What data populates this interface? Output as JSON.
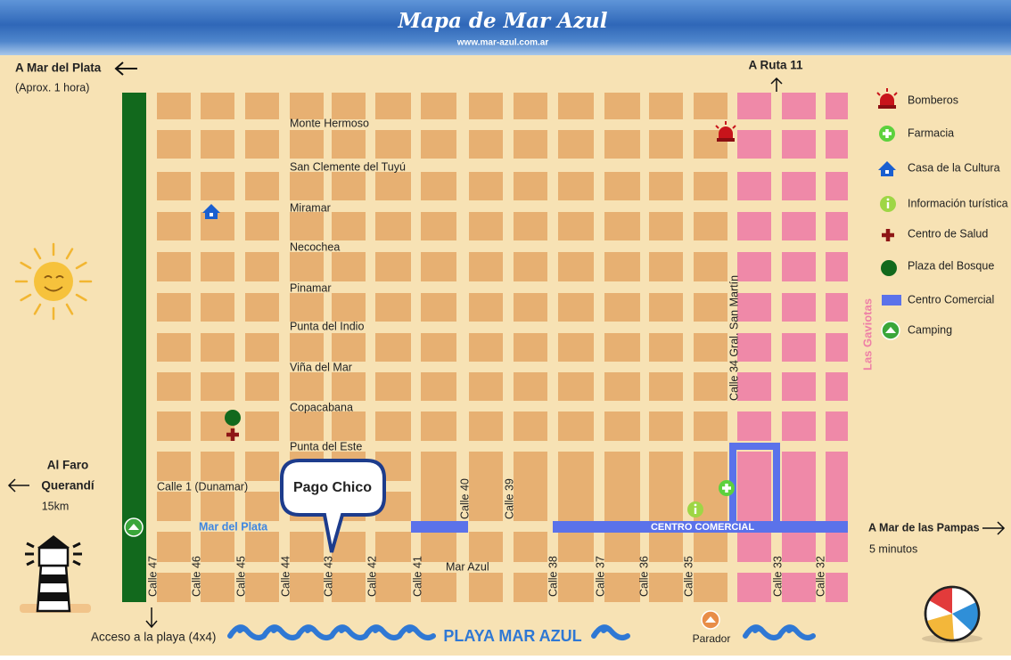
{
  "header": {
    "title": "Mapa de Mar Azul",
    "subtitle": "www.mar-azul.com.ar"
  },
  "directions": {
    "mar_del_plata": {
      "label": "A Mar del Plata",
      "note": "(Aprox. 1 hora)"
    },
    "ruta_11": {
      "label": "A Ruta 11"
    },
    "faro": {
      "label_lines": [
        "Al Faro",
        "Querandí"
      ],
      "note": "15km"
    },
    "mar_de_las_pampas": {
      "label": "A Mar de las Pampas",
      "note": "5 minutos"
    },
    "acceso_playa": {
      "label": "Acceso a la playa (4x4)"
    }
  },
  "streets": [
    "Monte Hermoso",
    "San Clemente del Tuyú",
    "Miramar",
    "Necochea",
    "Pinamar",
    "Punta del Indio",
    "Viña del Mar",
    "Copacabana",
    "Punta del Este",
    "Calle 1 (Dunamar)",
    "Mar del Plata",
    "Mar Azul"
  ],
  "calles": [
    "Calle 47",
    "Calle 46",
    "Calle 45",
    "Calle 44",
    "Calle 43",
    "Calle 42",
    "Calle 41",
    "Calle 40",
    "Calle 39",
    "Calle 38",
    "Calle 37",
    "Calle 36",
    "Calle 35",
    "Calle 34 Gral. San Martín",
    "Calle 33",
    "Calle 32"
  ],
  "areas": {
    "barrio": "Las Gaviotas",
    "centro": "CENTRO COMERCIAL",
    "playa": "PLAYA MAR AZUL",
    "parador": "Parador",
    "pago_chico": "Pago Chico"
  },
  "legend": [
    "Bomberos",
    "Farmacia",
    "Casa de la Cultura",
    "Información turística",
    "Centro de Salud",
    "Plaza del Bosque",
    "Centro Comercial",
    "Camping"
  ]
}
